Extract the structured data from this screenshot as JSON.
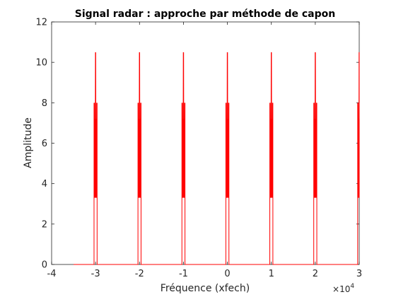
{
  "chart_data": {
    "type": "line",
    "title": "Signal radar : approche par méthode de capon",
    "xlabel": "Fréquence (xfech)",
    "ylabel": "Amplitude",
    "x_exponent_label": "10",
    "x_exponent_power": "4",
    "xlim": [
      -40000,
      30000
    ],
    "ylim": [
      0,
      12
    ],
    "xticks": [
      -40000,
      -30000,
      -20000,
      -10000,
      0,
      10000,
      20000,
      30000
    ],
    "xtick_labels": [
      "-4",
      "-3",
      "-2",
      "-1",
      "0",
      "1",
      "2",
      "3"
    ],
    "yticks": [
      0,
      2,
      4,
      6,
      8,
      10,
      12
    ],
    "ytick_labels": [
      "0",
      "2",
      "4",
      "6",
      "8",
      "10",
      "12"
    ],
    "grid": false,
    "series": [
      {
        "color": "#ff0000",
        "x_range": [
          -35000,
          30000
        ],
        "baseline": 0,
        "peak_centers": [
          -30000,
          -20000,
          -10000,
          0,
          10000,
          20000,
          30000
        ],
        "peak_value": 10.5,
        "side_lobe_value": 8.0,
        "inner_value": 7.2,
        "trough_value": 3.3,
        "fold_value": 4.0,
        "peak_halfwidth": 350
      }
    ]
  }
}
